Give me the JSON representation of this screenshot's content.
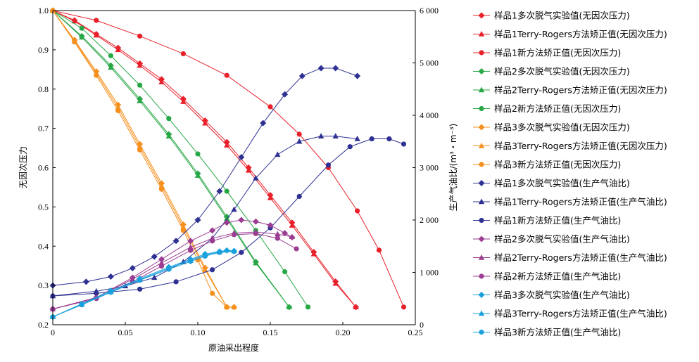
{
  "chart_data": {
    "type": "line",
    "xlabel": "原油采出程度",
    "ylabel_left": "无因次压力",
    "ylabel_right": "生产气油比/(m³・m⁻³)",
    "x_range": [
      0,
      0.25
    ],
    "y_left_range": [
      0.2,
      1.0
    ],
    "y_right_range": [
      0,
      6000
    ],
    "x_ticks": [
      "0",
      "0.05",
      "0.10",
      "0.15",
      "0.20",
      "0.25"
    ],
    "y_left_ticks": [
      "0.2",
      "0.3",
      "0.4",
      "0.5",
      "0.6",
      "0.7",
      "0.8",
      "0.9",
      "1.0"
    ],
    "y_right_ticks": [
      "0",
      "1 000",
      "2 000",
      "3 000",
      "4 000",
      "5 000",
      "6 000"
    ],
    "grid": false,
    "legend_position": "right",
    "colors": {
      "sample1_pressure": "#e8202a",
      "sample2_pressure": "#27a745",
      "sample3_pressure": "#f5901e",
      "sample1_gor": "#2e3192",
      "sample2_gor": "#9b3d92",
      "sample3_gor": "#1aa0dc"
    },
    "series": [
      {
        "name": "样品1多次脱气实验值(无因次压力)",
        "axis": "left",
        "color_key": "sample1_pressure",
        "marker": "diamond",
        "x": [
          0,
          0.015,
          0.03,
          0.045,
          0.06,
          0.075,
          0.09,
          0.105,
          0.12,
          0.135,
          0.15,
          0.165,
          0.18,
          0.195,
          0.209
        ],
        "y": [
          1.0,
          0.975,
          0.94,
          0.905,
          0.865,
          0.825,
          0.775,
          0.72,
          0.665,
          0.6,
          0.53,
          0.46,
          0.385,
          0.31,
          0.245
        ]
      },
      {
        "name": "样品1Terry-Rogers方法矫正值(无因次压力)",
        "axis": "left",
        "color_key": "sample1_pressure",
        "marker": "triangle",
        "x": [
          0,
          0.015,
          0.03,
          0.045,
          0.06,
          0.075,
          0.09,
          0.105,
          0.12,
          0.135,
          0.15,
          0.165,
          0.18,
          0.195,
          0.209
        ],
        "y": [
          1.0,
          0.973,
          0.937,
          0.9,
          0.86,
          0.818,
          0.768,
          0.713,
          0.657,
          0.593,
          0.523,
          0.453,
          0.38,
          0.305,
          0.245
        ]
      },
      {
        "name": "样品1新方法矫正值(无因次压力)",
        "axis": "left",
        "color_key": "sample1_pressure",
        "marker": "circle",
        "x": [
          0,
          0.03,
          0.06,
          0.09,
          0.12,
          0.15,
          0.17,
          0.19,
          0.21,
          0.225,
          0.242
        ],
        "y": [
          1.0,
          0.975,
          0.935,
          0.89,
          0.835,
          0.755,
          0.685,
          0.6,
          0.49,
          0.39,
          0.245
        ]
      },
      {
        "name": "样品2多次脱气实验值(无因次压力)",
        "axis": "left",
        "color_key": "sample2_pressure",
        "marker": "diamond",
        "x": [
          0,
          0.02,
          0.04,
          0.06,
          0.08,
          0.1,
          0.12,
          0.14,
          0.163
        ],
        "y": [
          1.0,
          0.935,
          0.86,
          0.775,
          0.685,
          0.585,
          0.475,
          0.36,
          0.245
        ]
      },
      {
        "name": "样品2Terry-Rogers方法矫正值(无因次压力)",
        "axis": "left",
        "color_key": "sample2_pressure",
        "marker": "triangle",
        "x": [
          0,
          0.02,
          0.04,
          0.06,
          0.08,
          0.1,
          0.12,
          0.14,
          0.163
        ],
        "y": [
          1.0,
          0.932,
          0.855,
          0.77,
          0.68,
          0.58,
          0.47,
          0.357,
          0.245
        ]
      },
      {
        "name": "样品2新方法矫正值(无因次压力)",
        "axis": "left",
        "color_key": "sample2_pressure",
        "marker": "circle",
        "x": [
          0,
          0.02,
          0.04,
          0.06,
          0.08,
          0.1,
          0.12,
          0.14,
          0.16,
          0.176
        ],
        "y": [
          1.0,
          0.955,
          0.885,
          0.81,
          0.725,
          0.635,
          0.54,
          0.44,
          0.335,
          0.245
        ]
      },
      {
        "name": "样品3多次脱气实验值(无因次压力)",
        "axis": "left",
        "color_key": "sample3_pressure",
        "marker": "diamond",
        "x": [
          0,
          0.015,
          0.03,
          0.045,
          0.06,
          0.075,
          0.09,
          0.105,
          0.12,
          0.125
        ],
        "y": [
          1.0,
          0.925,
          0.845,
          0.76,
          0.66,
          0.56,
          0.455,
          0.345,
          0.245,
          0.245
        ]
      },
      {
        "name": "样品3Terry-Rogers方法矫正值(无因次压力)",
        "axis": "left",
        "color_key": "sample3_pressure",
        "marker": "triangle",
        "x": [
          0,
          0.015,
          0.03,
          0.045,
          0.06,
          0.075,
          0.09,
          0.105,
          0.12,
          0.125
        ],
        "y": [
          1.0,
          0.922,
          0.84,
          0.753,
          0.653,
          0.553,
          0.448,
          0.34,
          0.245,
          0.245
        ]
      },
      {
        "name": "样品3新方法矫正值(无因次压力)",
        "axis": "left",
        "color_key": "sample3_pressure",
        "marker": "circle",
        "x": [
          0,
          0.015,
          0.03,
          0.045,
          0.06,
          0.075,
          0.09,
          0.1,
          0.11,
          0.12
        ],
        "y": [
          1.0,
          0.92,
          0.835,
          0.745,
          0.645,
          0.545,
          0.44,
          0.365,
          0.28,
          0.245
        ]
      },
      {
        "name": "样品1多次脱气实验值(生产气油比)",
        "axis": "right",
        "color_key": "sample1_gor",
        "marker": "diamond",
        "x": [
          0,
          0.023,
          0.04,
          0.055,
          0.07,
          0.085,
          0.1,
          0.115,
          0.13,
          0.145,
          0.16,
          0.172,
          0.185,
          0.195,
          0.21
        ],
        "y": [
          750,
          820,
          920,
          1080,
          1300,
          1600,
          2000,
          2550,
          3200,
          3850,
          4400,
          4750,
          4900,
          4900,
          4750
        ]
      },
      {
        "name": "样品1Terry-Rogers方法矫正值(生产气油比)",
        "axis": "right",
        "color_key": "sample1_gor",
        "marker": "triangle",
        "x": [
          0,
          0.03,
          0.05,
          0.07,
          0.09,
          0.11,
          0.125,
          0.14,
          0.155,
          0.17,
          0.185,
          0.195,
          0.21
        ],
        "y": [
          550,
          640,
          740,
          900,
          1200,
          1650,
          2200,
          2800,
          3250,
          3500,
          3600,
          3600,
          3550
        ]
      },
      {
        "name": "样品1新方法矫正值(生产气油比)",
        "axis": "right",
        "color_key": "sample1_gor",
        "marker": "circle",
        "x": [
          0,
          0.03,
          0.06,
          0.085,
          0.11,
          0.13,
          0.15,
          0.17,
          0.19,
          0.205,
          0.22,
          0.232,
          0.242
        ],
        "y": [
          550,
          600,
          680,
          820,
          1050,
          1380,
          1850,
          2450,
          3050,
          3400,
          3550,
          3550,
          3450
        ]
      },
      {
        "name": "样品2多次脱气实验值(生产气油比)",
        "axis": "right",
        "color_key": "sample2_gor",
        "marker": "diamond",
        "x": [
          0,
          0.03,
          0.055,
          0.075,
          0.095,
          0.11,
          0.12,
          0.13,
          0.14,
          0.15,
          0.16,
          0.165
        ],
        "y": [
          300,
          520,
          900,
          1250,
          1600,
          1800,
          1950,
          2000,
          1970,
          1900,
          1750,
          1670
        ]
      },
      {
        "name": "样品2Terry-Rogers方法矫正值(生产气油比)",
        "axis": "right",
        "color_key": "sample2_gor",
        "marker": "triangle",
        "x": [
          0,
          0.03,
          0.055,
          0.075,
          0.095,
          0.11,
          0.125,
          0.14,
          0.155,
          0.165
        ],
        "y": [
          300,
          520,
          870,
          1180,
          1480,
          1650,
          1750,
          1770,
          1730,
          1680
        ]
      },
      {
        "name": "样品2新方法矫正值(生产气油比)",
        "axis": "right",
        "color_key": "sample2_gor",
        "marker": "circle",
        "x": [
          0,
          0.03,
          0.055,
          0.075,
          0.095,
          0.11,
          0.125,
          0.14,
          0.155,
          0.168
        ],
        "y": [
          300,
          500,
          820,
          1120,
          1420,
          1600,
          1720,
          1740,
          1650,
          1450
        ]
      },
      {
        "name": "样品3多次脱气实验值(生产气油比)",
        "axis": "right",
        "color_key": "sample3_gor",
        "marker": "diamond",
        "x": [
          0,
          0.02,
          0.04,
          0.06,
          0.08,
          0.095,
          0.105,
          0.115,
          0.12,
          0.125
        ],
        "y": [
          150,
          400,
          650,
          880,
          1100,
          1250,
          1350,
          1400,
          1420,
          1410
        ]
      },
      {
        "name": "样品3Terry-Rogers方法矫正值(生产气油比)",
        "axis": "right",
        "color_key": "sample3_gor",
        "marker": "triangle",
        "x": [
          0,
          0.02,
          0.04,
          0.06,
          0.08,
          0.095,
          0.105,
          0.115,
          0.125
        ],
        "y": [
          150,
          390,
          630,
          860,
          1080,
          1230,
          1330,
          1390,
          1410
        ]
      },
      {
        "name": "样品3新方法矫正值(生产气油比)",
        "axis": "right",
        "color_key": "sample3_gor",
        "marker": "circle",
        "x": [
          0,
          0.02,
          0.04,
          0.06,
          0.08,
          0.095,
          0.105,
          0.115,
          0.125
        ],
        "y": [
          150,
          380,
          620,
          850,
          1060,
          1210,
          1310,
          1380,
          1400
        ]
      }
    ]
  }
}
